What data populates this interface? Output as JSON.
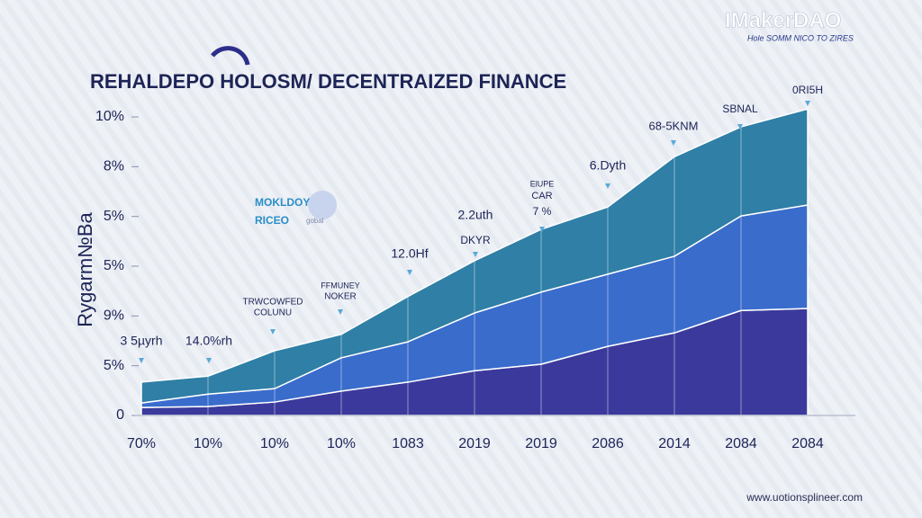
{
  "chart_data": {
    "type": "area",
    "stacked": true,
    "title": "REHALDEPO   HOLOSM/ DECENTRAIZED FINANCE",
    "ylabel": "Rygarm№Ba",
    "brand": "IMakerDAO",
    "brand_tagline": "Hole SOMM NICO TO ZIRES",
    "footer": "www.uotionsplineer.com",
    "badge": [
      "MOKLDOY",
      "RICEO",
      "gobal"
    ],
    "categories": [
      "70%",
      "10%",
      "10%",
      "10%",
      "1083",
      "2019",
      "2019",
      "2086",
      "2014",
      "2084",
      "2084"
    ],
    "series": [
      {
        "color": "#3b3a9c",
        "values": [
          0.16,
          0.18,
          0.27,
          0.49,
          0.67,
          0.9,
          1.03,
          1.39,
          1.66,
          2.11,
          2.15
        ]
      },
      {
        "color": "#3a6ccc",
        "values": [
          0.09,
          0.25,
          0.27,
          0.67,
          0.81,
          1.16,
          1.45,
          1.45,
          1.54,
          1.9,
          2.08
        ]
      },
      {
        "color": "#2f7fa6",
        "values": [
          0.42,
          0.36,
          0.76,
          0.47,
          0.91,
          1.05,
          1.26,
          1.35,
          2.0,
          1.79,
          1.93
        ]
      }
    ],
    "ylim": [
      0,
      6.2
    ],
    "yticks": [
      0,
      {
        "value": 1,
        "label": "5%"
      },
      {
        "value": 2,
        "label": "9%"
      },
      {
        "value": 3,
        "label": "5%"
      },
      {
        "value": 4,
        "label": "5%"
      },
      {
        "value": 5,
        "label": "8%"
      },
      {
        "value": 6,
        "label": "10%"
      }
    ],
    "annotations": [
      "3 5µyrh",
      "14.0%rh",
      "TRWCOWFED",
      "COLUNU",
      "FFMUNEY",
      "NOKER",
      "12.0Hf",
      "2.2uth",
      "DKYR",
      "ElUPE",
      "CAR",
      "7 %",
      "6.Dyth",
      "68-5KNM",
      "SBNAL",
      "0RI5H"
    ]
  }
}
